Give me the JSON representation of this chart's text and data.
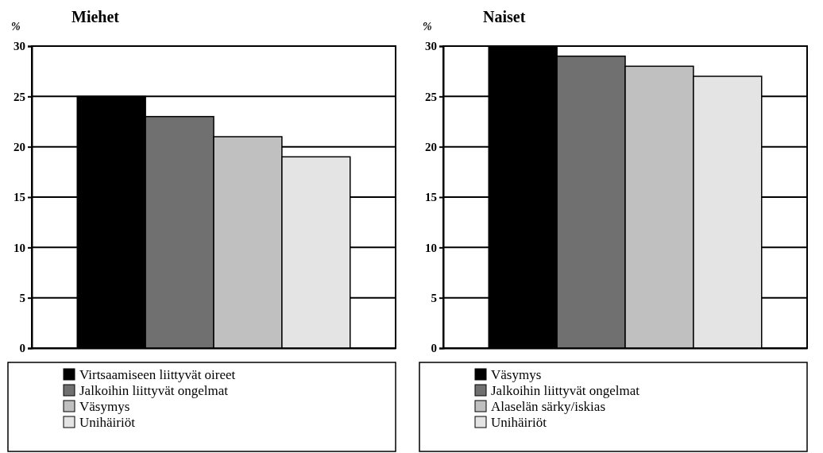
{
  "chart_data": [
    {
      "type": "bar",
      "title": "Miehet",
      "ylabel": "%",
      "categories": [
        null
      ],
      "ylim": [
        0,
        30
      ],
      "yticks": [
        0,
        5,
        10,
        15,
        20,
        25,
        30
      ],
      "grid": "y",
      "legend": "bottom",
      "series": [
        {
          "name": "Virtsaamiseen liittyvät oireet",
          "color": "#000000",
          "values": [
            25
          ]
        },
        {
          "name": "Jalkoihin liittyvät ongelmat",
          "color": "#707070",
          "values": [
            23
          ]
        },
        {
          "name": "Väsymys",
          "color": "#c0c0c0",
          "values": [
            21
          ]
        },
        {
          "name": "Unihäiriöt",
          "color": "#e4e4e4",
          "values": [
            19
          ]
        }
      ]
    },
    {
      "type": "bar",
      "title": "Naiset",
      "ylabel": "%",
      "categories": [
        null
      ],
      "ylim": [
        0,
        30
      ],
      "yticks": [
        0,
        5,
        10,
        15,
        20,
        25,
        30
      ],
      "grid": "y",
      "legend": "bottom",
      "series": [
        {
          "name": "Väsymys",
          "color": "#000000",
          "values": [
            30
          ]
        },
        {
          "name": "Jalkoihin liittyvät ongelmat",
          "color": "#707070",
          "values": [
            29
          ]
        },
        {
          "name": "Alaselän särky/iskias",
          "color": "#c0c0c0",
          "values": [
            28
          ]
        },
        {
          "name": "Unihäiriöt",
          "color": "#e4e4e4",
          "values": [
            27
          ]
        }
      ]
    }
  ]
}
